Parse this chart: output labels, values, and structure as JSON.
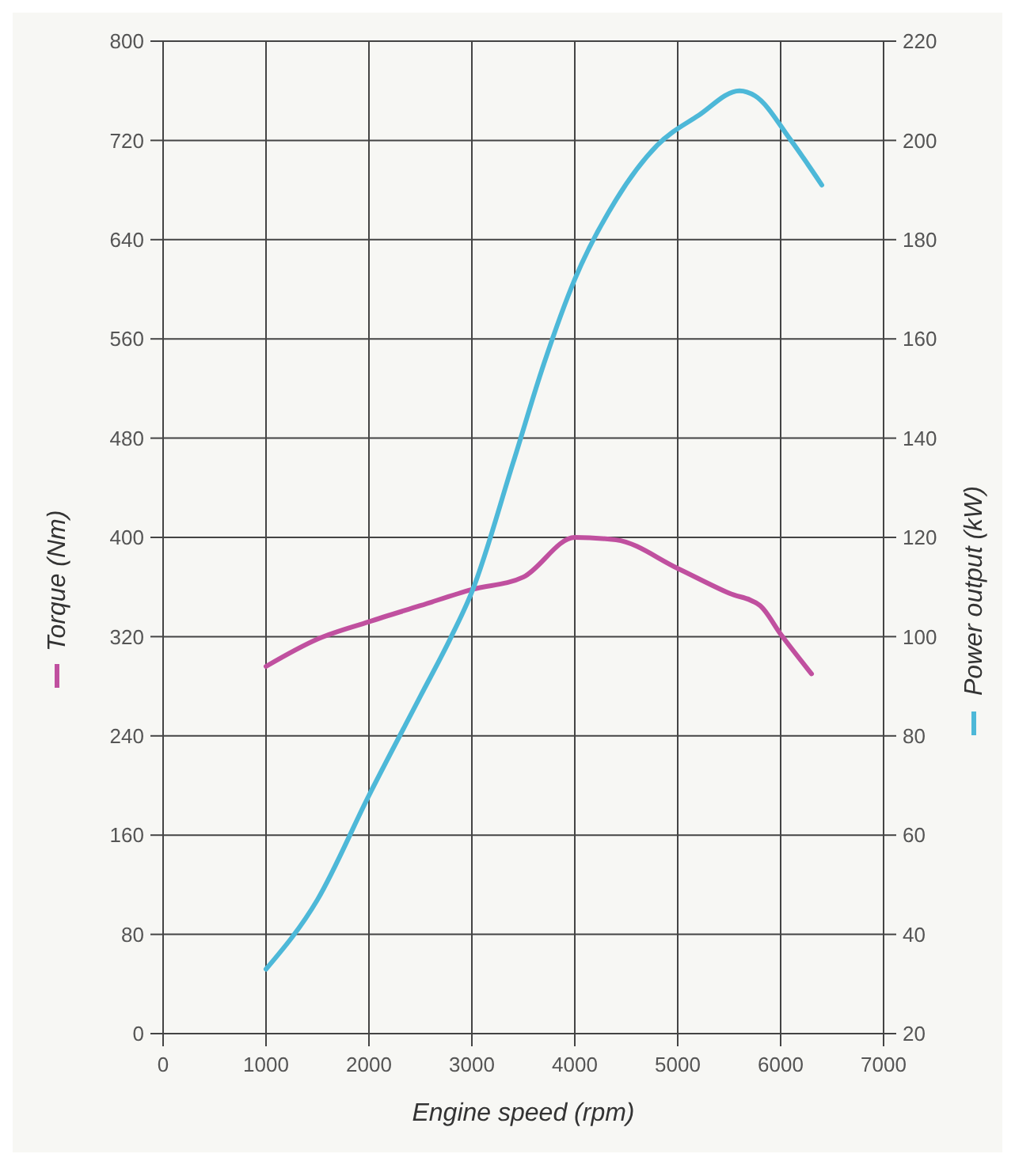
{
  "chart_data": {
    "type": "line",
    "xlabel": "Engine speed (rpm)",
    "ylabel": "Torque (Nm)",
    "y2label": "Power output (kW)",
    "xlim": [
      0,
      7000
    ],
    "xticks": [
      0,
      1000,
      2000,
      3000,
      4000,
      5000,
      6000,
      7000
    ],
    "ylim": [
      0,
      800
    ],
    "yticks": [
      0,
      80,
      160,
      240,
      320,
      400,
      480,
      560,
      640,
      720,
      800
    ],
    "y2lim": [
      20,
      220
    ],
    "y2ticks": [
      20,
      40,
      60,
      80,
      100,
      120,
      140,
      160,
      180,
      200,
      220
    ],
    "grid": true,
    "series": [
      {
        "color": "#c0509f",
        "x": [
          1000,
          1500,
          2000,
          2500,
          3000,
          3500,
          4000,
          4400,
          5000,
          5500,
          5800,
          6000,
          6300
        ],
        "values": [
          296,
          318,
          332,
          345,
          358,
          368,
          400,
          398,
          375,
          355,
          345,
          322,
          290
        ]
      },
      {
        "color": "#4db8d8",
        "axis": "y2",
        "x": [
          1000,
          1500,
          2000,
          2500,
          2800,
          3000,
          3400,
          3700,
          4000,
          4400,
          4800,
          5200,
          5600,
          5750,
          6100,
          6400
        ],
        "values": [
          33,
          47,
          68,
          88,
          100,
          109,
          135,
          155,
          172,
          188,
          199,
          205,
          210,
          209,
          200,
          191
        ]
      }
    ]
  }
}
